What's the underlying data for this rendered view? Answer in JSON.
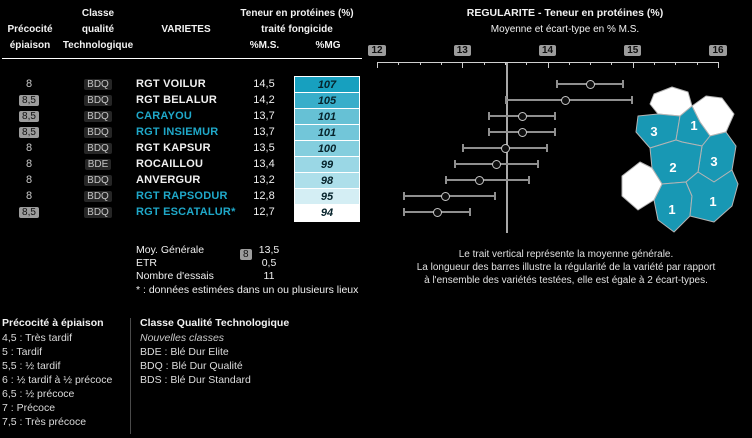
{
  "colors": {
    "accent_teal": "#1fa8c9",
    "map_teal": "#1898b4",
    "chip_gray": "#9c9c9c",
    "background": "#000000"
  },
  "table": {
    "headers": {
      "precocite_line1": "Précocité",
      "precocite_line2": "épiaison",
      "classe_line1": "Classe",
      "classe_line2": "qualité",
      "classe_line3": "Technologique",
      "varietes": "VARIETES",
      "teneur_line1": "Teneur en protéines (%)",
      "teneur_line2": "traité fongicide",
      "ms": "%M.S.",
      "mg": "%MG"
    },
    "rows": [
      {
        "precocite": "8",
        "classe": "BDQ",
        "variete": "RGT VOILUR",
        "new": false,
        "ms": "14,5",
        "mg": "107",
        "mg_color": "#17a0bf"
      },
      {
        "precocite": "8,5",
        "classe": "BDQ",
        "variete": "RGT BELALUR",
        "new": false,
        "ms": "14,2",
        "mg": "105",
        "mg_color": "#38aeca"
      },
      {
        "precocite": "8,5",
        "classe": "BDQ",
        "variete": "CARAYOU",
        "new": true,
        "ms": "13,7",
        "mg": "101",
        "mg_color": "#66c1d5"
      },
      {
        "precocite": "8,5",
        "classe": "BDQ",
        "variete": "RGT INSIEMUR",
        "new": true,
        "ms": "13,7",
        "mg": "101",
        "mg_color": "#72c6d9"
      },
      {
        "precocite": "8",
        "classe": "BDQ",
        "variete": "RGT KAPSUR",
        "new": false,
        "ms": "13,5",
        "mg": "100",
        "mg_color": "#84cede"
      },
      {
        "precocite": "8",
        "classe": "BDE",
        "variete": "ROCAILLOU",
        "new": false,
        "ms": "13,4",
        "mg": "99",
        "mg_color": "#9ad7e5"
      },
      {
        "precocite": "8",
        "classe": "BDQ",
        "variete": "ANVERGUR",
        "new": false,
        "ms": "13,2",
        "mg": "98",
        "mg_color": "#addfea"
      },
      {
        "precocite": "8",
        "classe": "BDQ",
        "variete": "RGT RAPSODUR",
        "new": true,
        "ms": "12,8",
        "mg": "95",
        "mg_color": "#d4eef4"
      },
      {
        "precocite": "8,5",
        "classe": "BDQ",
        "variete": "RGT ESCATALUR*",
        "new": true,
        "ms": "12,7",
        "mg": "94",
        "mg_color": "#ffffff"
      }
    ],
    "summary": {
      "moy_label": "Moy. Générale",
      "moy_precocite": "8",
      "moy_value": "13,5",
      "etr_label": "ETR",
      "etr_value": "0,5",
      "essais_label": "Nombre d'essais",
      "essais_value": "11",
      "footnote": "* : données estimées dans un ou plusieurs lieux"
    }
  },
  "chart_data": {
    "type": "scatter",
    "title": "REGULARITE - Teneur en protéines (%)",
    "subtitle": "Moyenne et écart-type en % M.S.",
    "xlabel": "% M.S.",
    "xlim": [
      12,
      16
    ],
    "xticks": [
      12,
      13,
      14,
      15,
      16
    ],
    "grid": false,
    "legend_position": "none",
    "mean_line": 13.5,
    "series": [
      {
        "name": "RGT VOILUR",
        "mean": 14.5,
        "low": 14.1,
        "high": 14.9
      },
      {
        "name": "RGT BELALUR",
        "mean": 14.2,
        "low": 13.5,
        "high": 15.0
      },
      {
        "name": "CARAYOU",
        "mean": 13.7,
        "low": 13.3,
        "high": 14.1
      },
      {
        "name": "RGT INSIEMUR",
        "mean": 13.7,
        "low": 13.3,
        "high": 14.1
      },
      {
        "name": "RGT KAPSUR",
        "mean": 13.5,
        "low": 13.0,
        "high": 14.0
      },
      {
        "name": "ROCAILLOU",
        "mean": 13.4,
        "low": 12.9,
        "high": 13.9
      },
      {
        "name": "ANVERGUR",
        "mean": 13.2,
        "low": 12.8,
        "high": 13.8
      },
      {
        "name": "RGT RAPSODUR",
        "mean": 12.8,
        "low": 12.3,
        "high": 13.4
      },
      {
        "name": "RGT ESCATALUR*",
        "mean": 12.7,
        "low": 12.3,
        "high": 13.1
      }
    ]
  },
  "note": [
    "Le trait vertical représente la moyenne générale.",
    "La longueur des barres illustre la régularité de la variété par rapport",
    "à l'ensemble des variétés testées, elle est égale à 2 écart-types."
  ],
  "map": {
    "region_counts": [
      "3",
      "1",
      "3",
      "2",
      "1",
      "1"
    ],
    "fill": "#1898b4"
  },
  "legend_precocite": {
    "title": "Précocité à épiaison",
    "items": [
      "4,5 : Très tardif",
      "5 : Tardif",
      "5,5 : ½ tardif",
      "6 : ½ tardif à ½ précoce",
      "6,5 : ½ précoce",
      "7 : Précoce",
      "7,5 : Très précoce"
    ]
  },
  "legend_classe": {
    "title": "Classe Qualité Technologique",
    "subtitle": "Nouvelles classes",
    "items": [
      "BDE : Blé Dur Elite",
      "BDQ : Blé Dur Qualité",
      "BDS : Blé Dur Standard"
    ]
  }
}
